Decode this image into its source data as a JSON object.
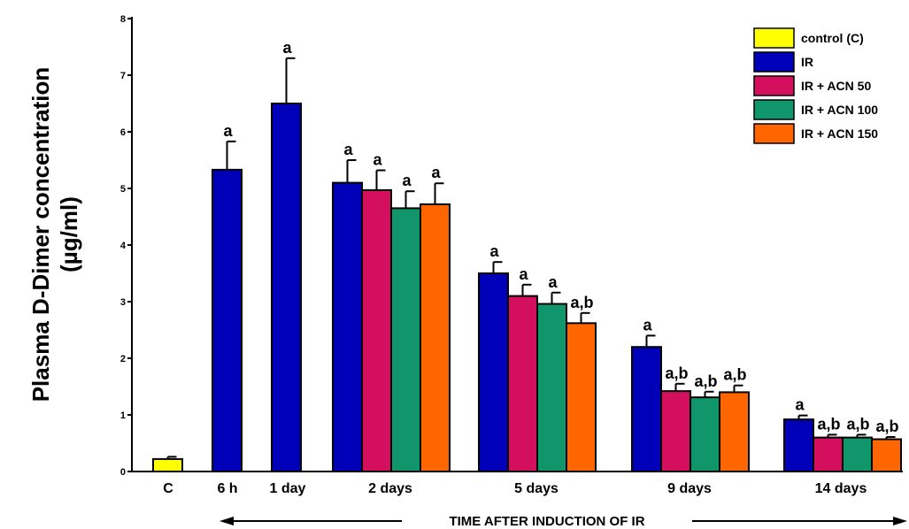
{
  "chart_data": {
    "type": "bar",
    "ylabel_line1": "Plasma D-Dimer concentration",
    "ylabel_line2": "(µg/ml)",
    "xlabel": "TIME AFTER INDUCTION OF IR",
    "ylim": [
      0,
      8
    ],
    "yticks": [
      "0",
      "1",
      "2",
      "3",
      "4",
      "5",
      "6",
      "7",
      "8"
    ],
    "grid": false,
    "legend_position": "top-right",
    "legend": [
      {
        "name": "control (C)",
        "color": "#ffff00"
      },
      {
        "name": "IR",
        "color": "#0000b8"
      },
      {
        "name": "IR + ACN 50",
        "color": "#d4105e"
      },
      {
        "name": "IR + ACN 100",
        "color": "#10966a"
      },
      {
        "name": "IR + ACN 150",
        "color": "#ff6600"
      }
    ],
    "groups": [
      {
        "label": "C",
        "bars": [
          {
            "series": 0,
            "value": 0.22,
            "error": 0.04,
            "annotation": ""
          }
        ]
      },
      {
        "label": "6 h",
        "bars": [
          {
            "series": 1,
            "value": 5.33,
            "error": 0.5,
            "annotation": "a"
          }
        ]
      },
      {
        "label": "1 day",
        "bars": [
          {
            "series": 1,
            "value": 6.5,
            "error": 0.8,
            "annotation": "a"
          }
        ]
      },
      {
        "label": "2 days",
        "bars": [
          {
            "series": 1,
            "value": 5.1,
            "error": 0.4,
            "annotation": "a"
          },
          {
            "series": 2,
            "value": 4.97,
            "error": 0.35,
            "annotation": "a"
          },
          {
            "series": 3,
            "value": 4.65,
            "error": 0.3,
            "annotation": "a"
          },
          {
            "series": 4,
            "value": 4.72,
            "error": 0.37,
            "annotation": "a"
          }
        ]
      },
      {
        "label": "5 days",
        "bars": [
          {
            "series": 1,
            "value": 3.5,
            "error": 0.2,
            "annotation": "a"
          },
          {
            "series": 2,
            "value": 3.1,
            "error": 0.2,
            "annotation": "a"
          },
          {
            "series": 3,
            "value": 2.96,
            "error": 0.2,
            "annotation": "a"
          },
          {
            "series": 4,
            "value": 2.62,
            "error": 0.18,
            "annotation": "a,b"
          }
        ]
      },
      {
        "label": "9 days",
        "bars": [
          {
            "series": 1,
            "value": 2.2,
            "error": 0.2,
            "annotation": "a"
          },
          {
            "series": 2,
            "value": 1.42,
            "error": 0.13,
            "annotation": "a,b"
          },
          {
            "series": 3,
            "value": 1.31,
            "error": 0.1,
            "annotation": "a,b"
          },
          {
            "series": 4,
            "value": 1.4,
            "error": 0.12,
            "annotation": "a,b"
          }
        ]
      },
      {
        "label": "14 days",
        "bars": [
          {
            "series": 1,
            "value": 0.92,
            "error": 0.07,
            "annotation": "a"
          },
          {
            "series": 2,
            "value": 0.6,
            "error": 0.05,
            "annotation": "a,b"
          },
          {
            "series": 3,
            "value": 0.6,
            "error": 0.05,
            "annotation": "a,b"
          },
          {
            "series": 4,
            "value": 0.57,
            "error": 0.04,
            "annotation": "a,b"
          }
        ]
      }
    ]
  }
}
